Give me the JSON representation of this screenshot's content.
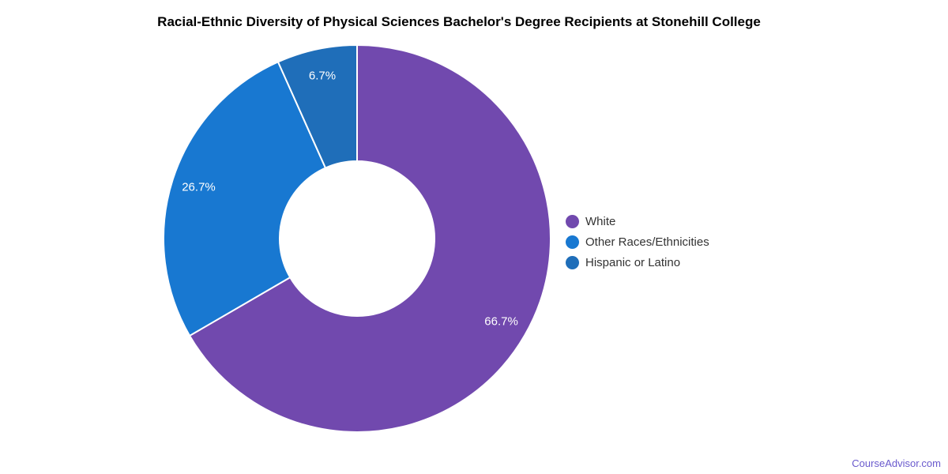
{
  "title": "Racial-Ethnic Diversity of Physical Sciences Bachelor's Degree Recipients at Stonehill College",
  "footer": {
    "credit_link": "CourseAdvisor.com",
    "credit_color": "#6a5acd"
  },
  "chart_data": {
    "type": "pie",
    "subtype": "donut",
    "title": "Racial-Ethnic Diversity of Physical Sciences Bachelor's Degree Recipients at Stonehill College",
    "legend_position": "right",
    "start_angle_deg": 0,
    "direction": "clockwise",
    "inner_radius_ratio": 0.4,
    "data_label_format": "percent",
    "series": [
      {
        "name": "White",
        "value": 66.7,
        "label": "66.7%",
        "color": "#7149ae"
      },
      {
        "name": "Other Races/Ethnicities",
        "value": 26.7,
        "label": "26.7%",
        "color": "#1878d1"
      },
      {
        "name": "Hispanic or Latino",
        "value": 6.7,
        "label": "6.7%",
        "color": "#1f6eb9"
      }
    ]
  },
  "legend": {
    "items": [
      {
        "label": "White"
      },
      {
        "label": "Other Races/Ethnicities"
      },
      {
        "label": "Hispanic or Latino"
      }
    ]
  }
}
